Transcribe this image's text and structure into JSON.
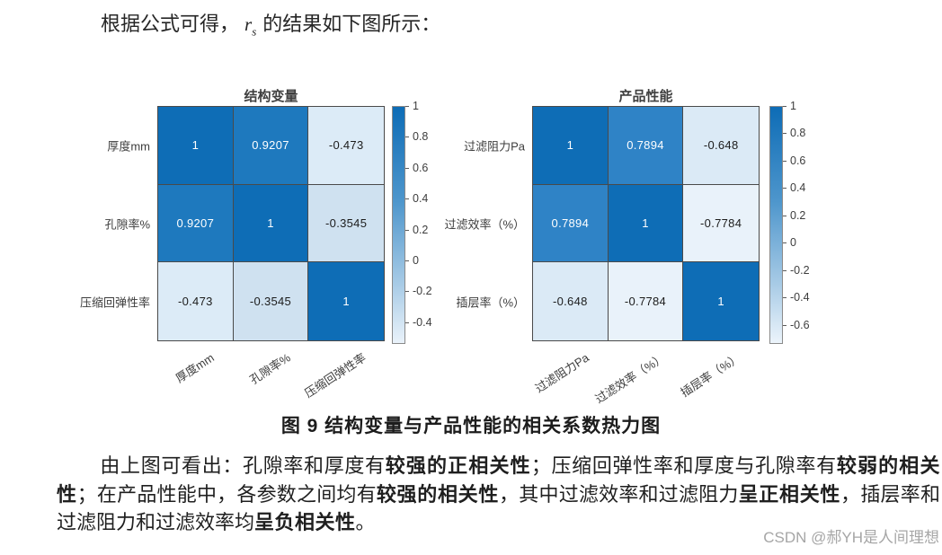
{
  "intro": {
    "prefix": "根据公式可得，",
    "var": "r",
    "var_sub": "s",
    "suffix": "的结果如下图所示："
  },
  "caption": "图 9 结构变量与产品性能的相关系数热力图",
  "watermark": "CSDN @郝YH是人间理想",
  "analysis_segments": [
    {
      "text": "由上图可看出：孔隙率和厚度有",
      "bold": false
    },
    {
      "text": "较强的正相关性",
      "bold": true
    },
    {
      "text": "；压缩回弹性率和厚度与孔隙率有",
      "bold": false
    },
    {
      "text": "较弱的相关性",
      "bold": true
    },
    {
      "text": "；在产品性能中，各参数之间均有",
      "bold": false
    },
    {
      "text": "较强的相关性",
      "bold": true
    },
    {
      "text": "，其中过滤效率和过滤阻力",
      "bold": false
    },
    {
      "text": "呈正相关性",
      "bold": true
    },
    {
      "text": "，插层率和过滤阻力和过滤效率均",
      "bold": false
    },
    {
      "text": "呈负相关性",
      "bold": true
    },
    {
      "text": "。",
      "bold": false
    }
  ],
  "chart_data": [
    {
      "type": "heatmap",
      "title": "结构变量",
      "categories": [
        "厚度mm",
        "孔隙率%",
        "压缩回弹性率"
      ],
      "matrix": [
        [
          1,
          0.9207,
          -0.473
        ],
        [
          0.9207,
          1,
          -0.3545
        ],
        [
          -0.473,
          -0.3545,
          1
        ]
      ],
      "cell_labels": [
        [
          "1",
          "0.9207",
          "-0.473"
        ],
        [
          "0.9207",
          "1",
          "-0.3545"
        ],
        [
          "-0.473",
          "-0.3545",
          "1"
        ]
      ],
      "cell_colors": [
        [
          "#0e6db6",
          "#1e79be",
          "#dcebf7"
        ],
        [
          "#1e79be",
          "#0e6db6",
          "#cfe1f0"
        ],
        [
          "#dcebf7",
          "#cfe1f0",
          "#0e6db6"
        ]
      ],
      "positive_text_color": "#ffffff",
      "negative_text_color": "#1c1c1c",
      "colorbar": {
        "ticks": [
          "1",
          "0.8",
          "0.6",
          "0.4",
          "0.2",
          "0",
          "-0.2",
          "-0.4"
        ],
        "top_color": "#0d6cb6",
        "bottom_color": "#e9f2fa"
      }
    },
    {
      "type": "heatmap",
      "title": "产品性能",
      "categories": [
        "过滤阻力Pa",
        "过滤效率（%）",
        "插层率（%）"
      ],
      "matrix": [
        [
          1,
          0.7894,
          -0.648
        ],
        [
          0.7894,
          1,
          -0.7784
        ],
        [
          -0.648,
          -0.7784,
          1
        ]
      ],
      "cell_labels": [
        [
          "1",
          "0.7894",
          "-0.648"
        ],
        [
          "0.7894",
          "1",
          "-0.7784"
        ],
        [
          "-0.648",
          "-0.7784",
          "1"
        ]
      ],
      "cell_colors": [
        [
          "#0e6db6",
          "#2f83c6",
          "#dbeaf6"
        ],
        [
          "#2f83c6",
          "#0e6db6",
          "#e9f2fa"
        ],
        [
          "#dbeaf6",
          "#e9f2fa",
          "#0e6db6"
        ]
      ],
      "positive_text_color": "#ffffff",
      "negative_text_color": "#1c1c1c",
      "colorbar": {
        "ticks": [
          "1",
          "0.8",
          "0.6",
          "0.4",
          "0.2",
          "0",
          "-0.2",
          "-0.4",
          "-0.6"
        ],
        "top_color": "#0d6cb6",
        "bottom_color": "#ecf4fb"
      }
    }
  ]
}
